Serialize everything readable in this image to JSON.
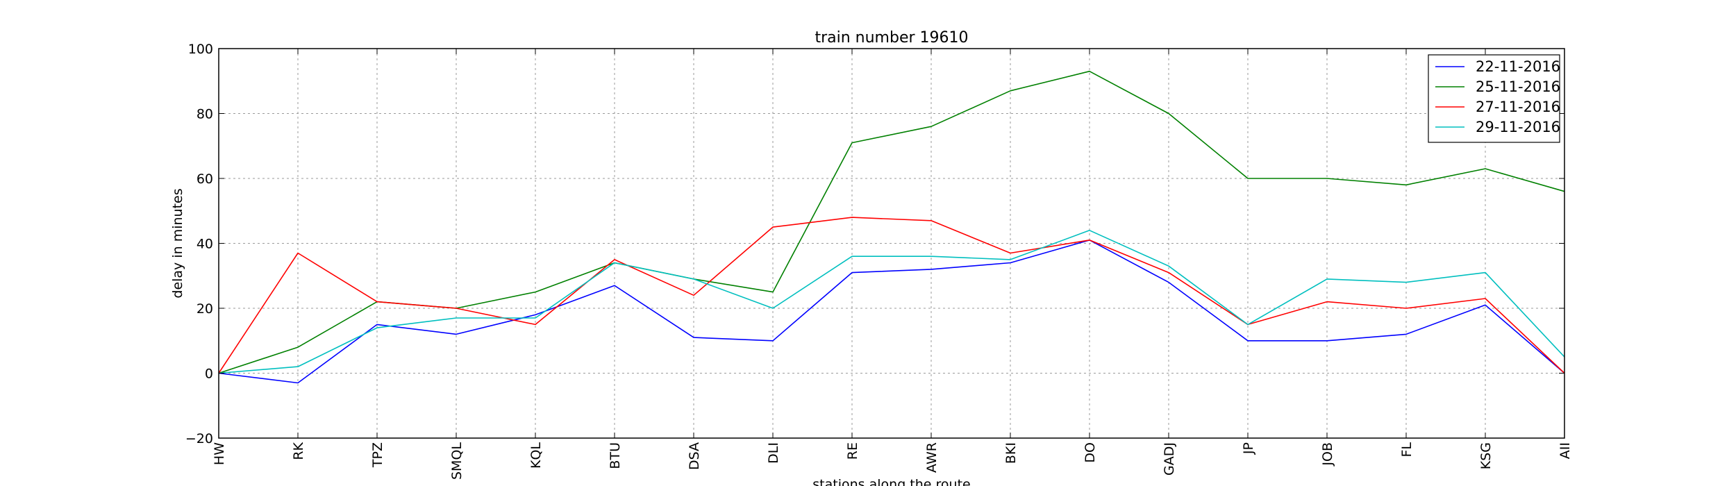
{
  "chart_data": {
    "type": "line",
    "title": "train number 19610",
    "xlabel": "stations along the route",
    "ylabel": "delay in minutes",
    "categories": [
      "HW",
      "RK",
      "TPZ",
      "SMQL",
      "KQL",
      "BTU",
      "DSA",
      "DLI",
      "RE",
      "AWR",
      "BKI",
      "DO",
      "GADJ",
      "JP",
      "JOB",
      "FL",
      "KSG",
      "AII"
    ],
    "yticks": [
      "100",
      "80",
      "60",
      "40",
      "20",
      "0",
      "−20"
    ],
    "ylim": [
      -20,
      100
    ],
    "grid": true,
    "legend_position": "top-right",
    "series": [
      {
        "name": "22-11-2016",
        "color": "#0000ff",
        "values": [
          0,
          -3,
          15,
          12,
          18,
          27,
          11,
          10,
          31,
          32,
          34,
          41,
          28,
          10,
          10,
          12,
          21,
          0
        ]
      },
      {
        "name": "25-11-2016",
        "color": "#008000",
        "values": [
          0,
          8,
          22,
          20,
          25,
          34,
          29,
          25,
          71,
          76,
          87,
          93,
          80,
          60,
          60,
          58,
          63,
          56
        ]
      },
      {
        "name": "27-11-2016",
        "color": "#ff0000",
        "values": [
          0,
          37,
          22,
          20,
          15,
          35,
          24,
          45,
          48,
          47,
          37,
          41,
          31,
          15,
          22,
          20,
          23,
          0
        ]
      },
      {
        "name": "29-11-2016",
        "color": "#00bfbf",
        "values": [
          0,
          2,
          14,
          17,
          17,
          34,
          29,
          20,
          36,
          36,
          35,
          44,
          33,
          15,
          29,
          28,
          31,
          5
        ]
      }
    ]
  }
}
